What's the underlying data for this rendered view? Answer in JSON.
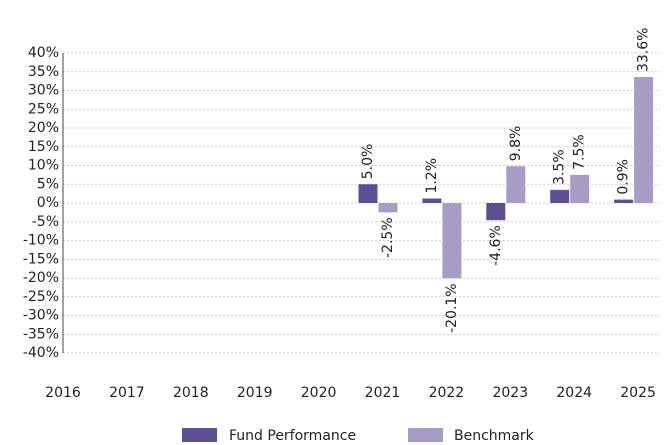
{
  "chart_data": {
    "type": "bar",
    "categories": [
      "2016",
      "2017",
      "2018",
      "2019",
      "2020",
      "2021",
      "2022",
      "2023",
      "2024",
      "2025"
    ],
    "series": [
      {
        "name": "Fund Performance",
        "color": "#5e4f94",
        "values": [
          null,
          null,
          null,
          null,
          null,
          5.0,
          1.2,
          -4.6,
          3.5,
          0.9
        ],
        "value_labels": [
          null,
          null,
          null,
          null,
          null,
          "5.0%",
          "1.2%",
          "-4.6%",
          "3.5%",
          "0.9%"
        ]
      },
      {
        "name": "Benchmark",
        "color": "#a89cc6",
        "values": [
          null,
          null,
          null,
          null,
          null,
          -2.5,
          -20.1,
          9.8,
          7.5,
          33.6
        ],
        "value_labels": [
          null,
          null,
          null,
          null,
          null,
          "-2.5%",
          "-20.1%",
          "9.8%",
          "7.5%",
          "33.6%"
        ]
      }
    ],
    "ylim": [
      -40,
      40
    ],
    "yticks": [
      {
        "value": -40,
        "label": "-40%"
      },
      {
        "value": -35,
        "label": "-35%"
      },
      {
        "value": -30,
        "label": "-30%"
      },
      {
        "value": -25,
        "label": "-25%"
      },
      {
        "value": -20,
        "label": "-20%"
      },
      {
        "value": -15,
        "label": "-15%"
      },
      {
        "value": -10,
        "label": "-10%"
      },
      {
        "value": -5,
        "label": "-5%"
      },
      {
        "value": 0,
        "label": "0%"
      },
      {
        "value": 5,
        "label": "5%"
      },
      {
        "value": 10,
        "label": "10%"
      },
      {
        "value": 15,
        "label": "15%"
      },
      {
        "value": 20,
        "label": "20%"
      },
      {
        "value": 25,
        "label": "25%"
      },
      {
        "value": 30,
        "label": "30%"
      },
      {
        "value": 35,
        "label": "35%"
      },
      {
        "value": 40,
        "label": "40%"
      }
    ],
    "grid": true
  }
}
